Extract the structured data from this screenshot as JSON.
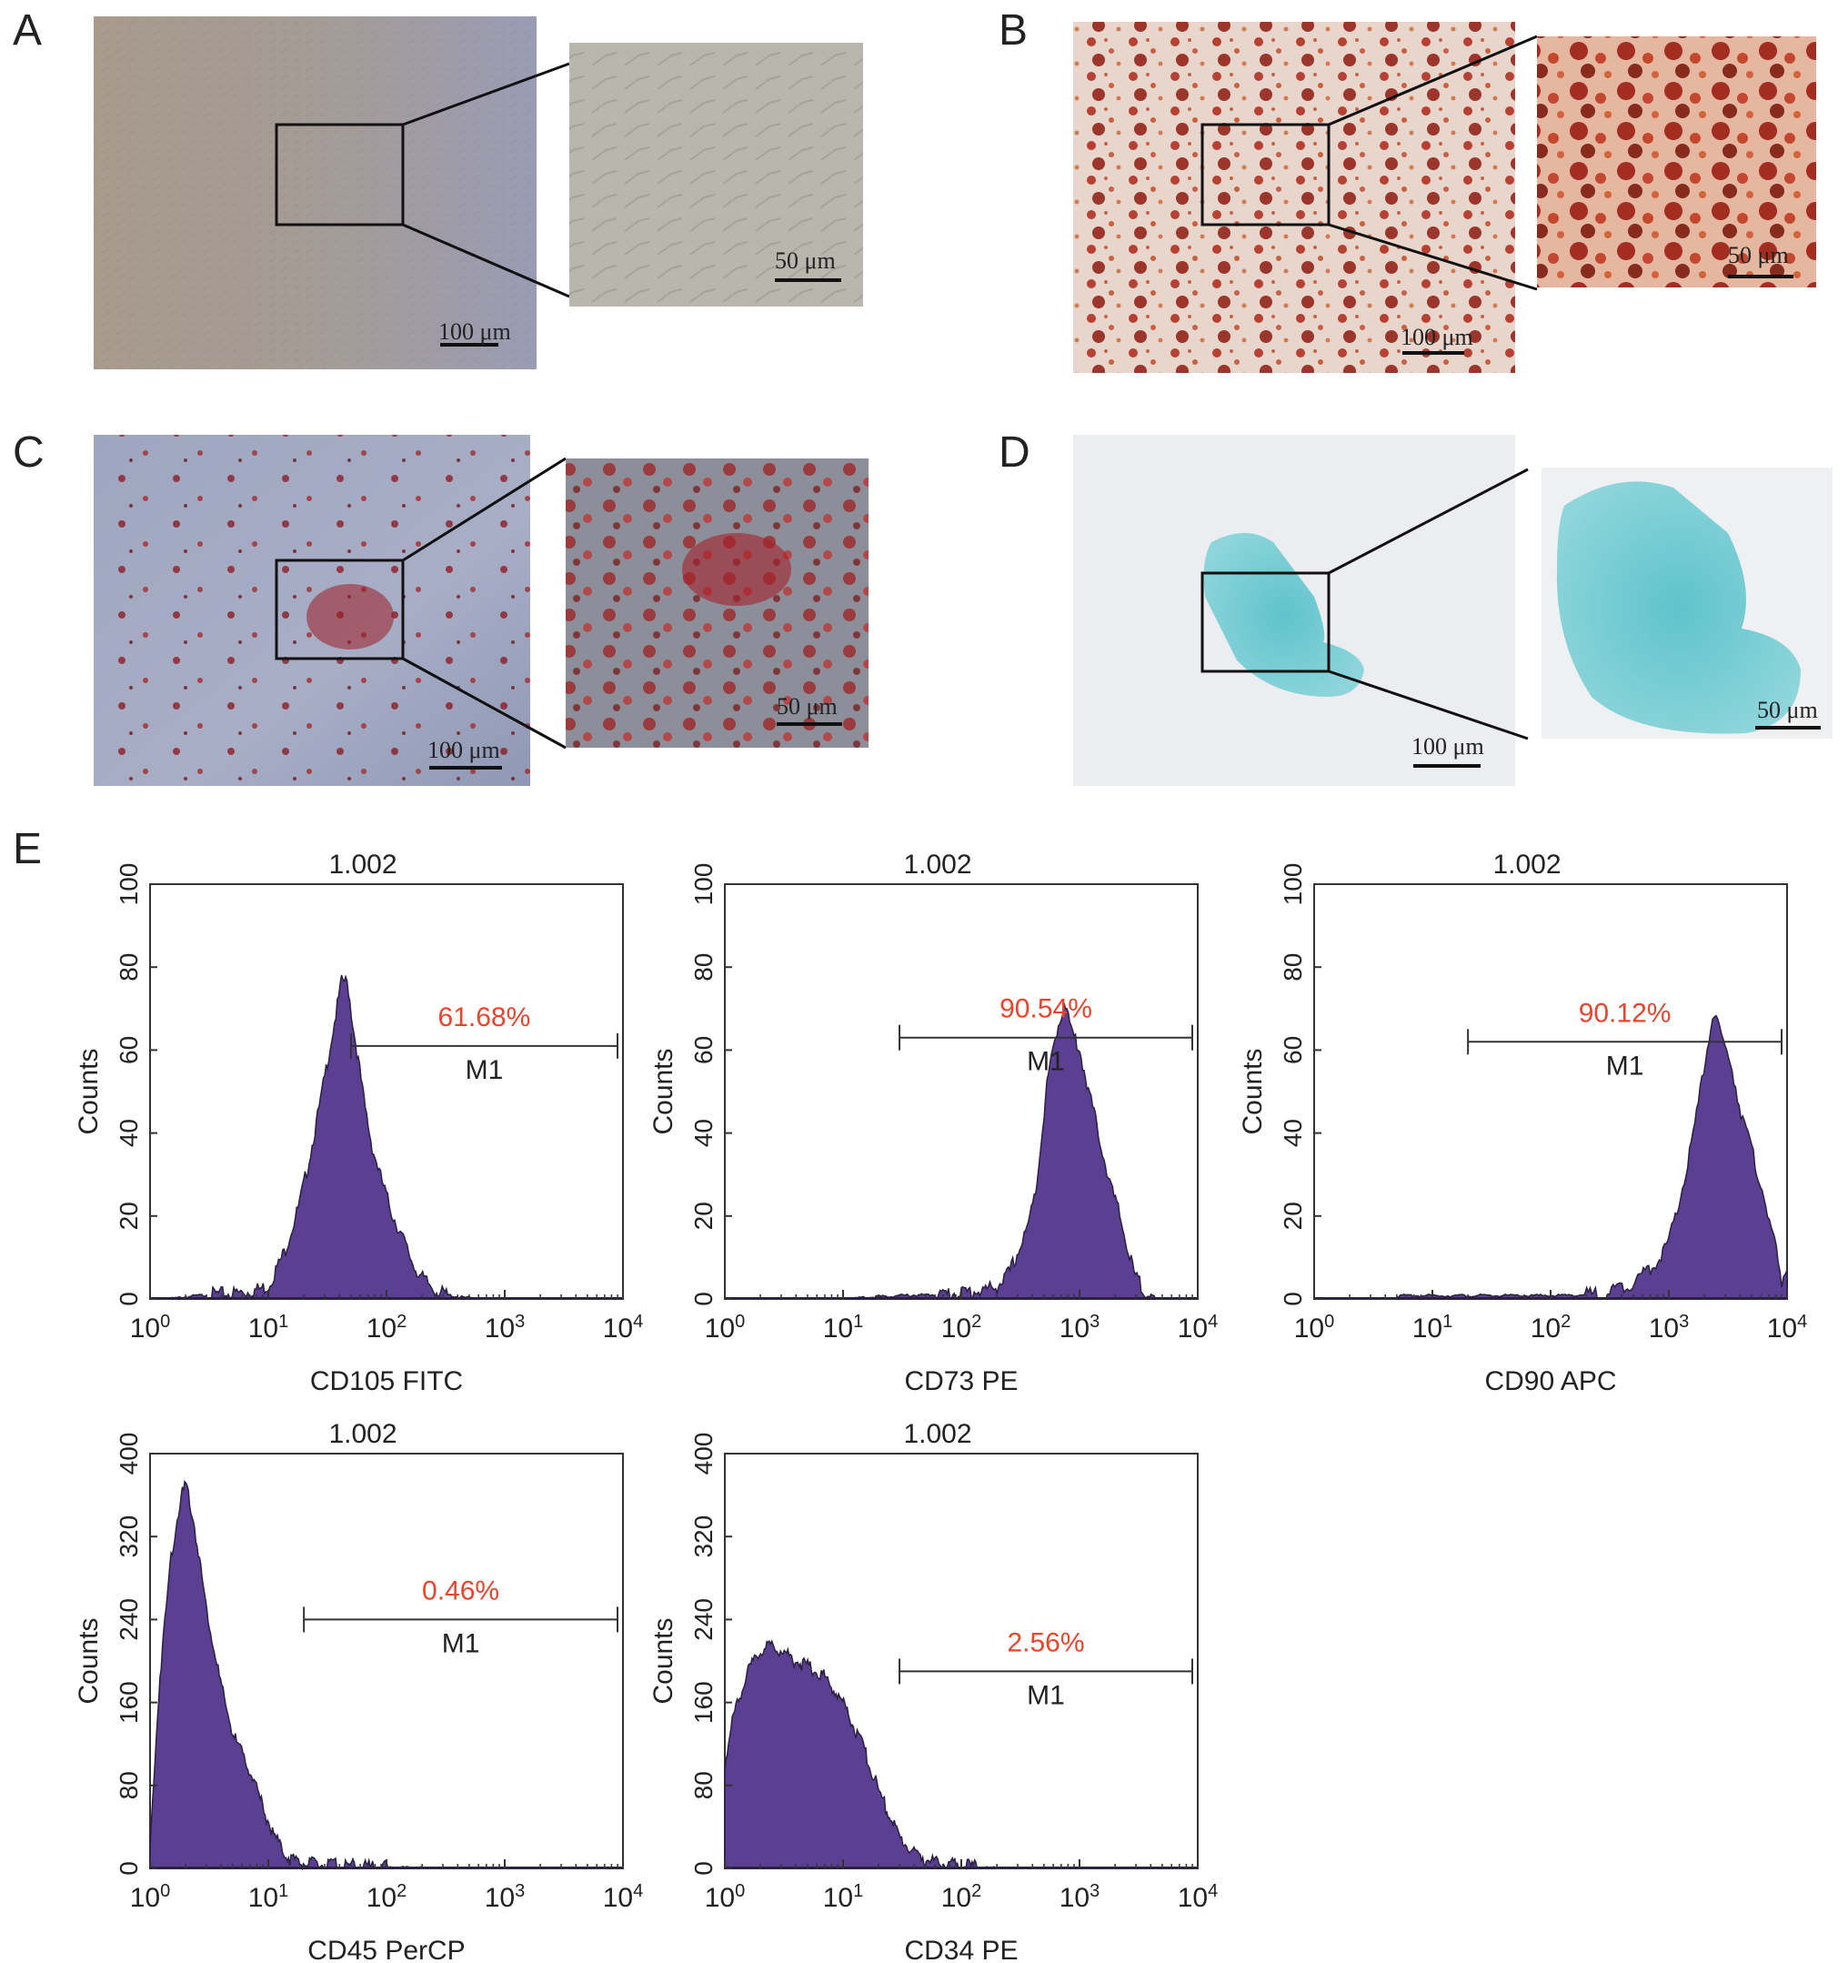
{
  "panel_letters": [
    "A",
    "B",
    "C",
    "D",
    "E"
  ],
  "micrographs": {
    "A": {
      "scale_main": "100 μm",
      "scale_zoom": "50 μm",
      "stain": "unstained",
      "color": "#a79b8f"
    },
    "B": {
      "scale_main": "100 μm",
      "scale_zoom": "50 μm",
      "stain": "alizarin-red",
      "color": "#b8281a"
    },
    "C": {
      "scale_main": "100 μm",
      "scale_zoom": "50 μm",
      "stain": "oil-red-o",
      "color": "#9e1f25"
    },
    "D": {
      "scale_main": "100 μm",
      "scale_zoom": "50 μm",
      "stain": "alcian-blue",
      "color": "#5ec8cf"
    }
  },
  "colors": {
    "fill": "#5b3f92",
    "percent": "#e8452c"
  },
  "chart_data": [
    {
      "type": "area",
      "title": "1.002",
      "xlabel": "CD105 FITC",
      "ylabel": "Counts",
      "xscale": "log",
      "xlim": [
        1,
        10000
      ],
      "ylim": [
        0,
        100
      ],
      "xticks": [
        1,
        10,
        100,
        1000,
        10000
      ],
      "yticks": [
        0,
        20,
        40,
        60,
        80,
        100
      ],
      "percent": "61.68%",
      "marker": "M1",
      "gate": [
        50,
        10000
      ],
      "gate_y": 61,
      "x": [
        1.5,
        2,
        3,
        5,
        7,
        10,
        14,
        18,
        22,
        27,
        32,
        37,
        42,
        47,
        52,
        58,
        65,
        75,
        90,
        110,
        140,
        170,
        200,
        250,
        300,
        400,
        600
      ],
      "y": [
        0,
        0.5,
        1,
        1.3,
        1.8,
        3,
        12,
        22,
        33,
        46,
        58,
        68,
        77,
        76,
        66,
        57,
        47,
        37,
        29,
        21,
        14,
        8,
        5,
        2.5,
        1.2,
        0.5,
        0
      ]
    },
    {
      "type": "area",
      "title": "1.002",
      "xlabel": "CD73 PE",
      "ylabel": "Counts",
      "xscale": "log",
      "xlim": [
        1,
        10000
      ],
      "ylim": [
        0,
        100
      ],
      "xticks": [
        1,
        10,
        100,
        1000,
        10000
      ],
      "yticks": [
        0,
        20,
        40,
        60,
        80,
        100
      ],
      "percent": "90.54%",
      "marker": "M1",
      "gate": [
        30,
        10000
      ],
      "gate_y": 63,
      "x": [
        10,
        30,
        60,
        100,
        150,
        200,
        250,
        300,
        350,
        400,
        450,
        500,
        550,
        650,
        750,
        850,
        1000,
        1200,
        1500,
        1800,
        2200,
        2600,
        3000,
        3600,
        4500
      ],
      "y": [
        0,
        0.8,
        1,
        1.5,
        2,
        3,
        6,
        11,
        16,
        22,
        32,
        45,
        55,
        65,
        72,
        65,
        60,
        50,
        38,
        28,
        20,
        11,
        5,
        2,
        0
      ]
    },
    {
      "type": "area",
      "title": "1.002",
      "xlabel": "CD90 APC",
      "ylabel": "Counts",
      "xscale": "log",
      "xlim": [
        1,
        10000
      ],
      "ylim": [
        0,
        100
      ],
      "xticks": [
        1,
        10,
        100,
        1000,
        10000
      ],
      "yticks": [
        0,
        20,
        40,
        60,
        80,
        100
      ],
      "percent": "90.12%",
      "marker": "M1",
      "gate": [
        20,
        10000
      ],
      "gate_y": 62,
      "x": [
        5,
        10,
        20,
        50,
        100,
        200,
        300,
        400,
        500,
        600,
        800,
        1000,
        1200,
        1500,
        1800,
        2100,
        2400,
        2800,
        3300,
        4000,
        5000,
        6500,
        8000,
        9000,
        10000
      ],
      "y": [
        0.8,
        0.8,
        0.8,
        0.8,
        0.8,
        1,
        1.5,
        3,
        4,
        6,
        9,
        14,
        22,
        35,
        48,
        60,
        70,
        62,
        58,
        46,
        36,
        24,
        12,
        4,
        8
      ]
    },
    {
      "type": "area",
      "title": "1.002",
      "xlabel": "CD45 PerCP",
      "ylabel": "Counts",
      "xscale": "log",
      "xlim": [
        1,
        10000
      ],
      "ylim": [
        0,
        400
      ],
      "xticks": [
        1,
        10,
        100,
        1000,
        10000
      ],
      "yticks": [
        0,
        80,
        160,
        240,
        320,
        400
      ],
      "percent": "0.46%",
      "marker": "M1",
      "gate": [
        20,
        10000
      ],
      "gate_y": 240,
      "x": [
        1,
        1.2,
        1.5,
        1.8,
        2,
        2.3,
        2.6,
        3,
        3.5,
        4,
        5,
        6,
        7,
        8,
        10,
        12,
        15,
        20,
        30,
        50,
        100,
        200
      ],
      "y": [
        20,
        180,
        300,
        355,
        370,
        340,
        300,
        250,
        210,
        175,
        130,
        110,
        95,
        75,
        45,
        25,
        10,
        5,
        3,
        2,
        1,
        0
      ]
    },
    {
      "type": "area",
      "title": "1.002",
      "xlabel": "CD34 PE",
      "ylabel": "Counts",
      "xscale": "log",
      "xlim": [
        1,
        10000
      ],
      "ylim": [
        0,
        400
      ],
      "xticks": [
        1,
        10,
        100,
        1000,
        10000
      ],
      "yticks": [
        0,
        80,
        160,
        240,
        320,
        400
      ],
      "percent": "2.56%",
      "marker": "M1",
      "gate": [
        30,
        10000
      ],
      "gate_y": 190,
      "x": [
        1,
        1.2,
        1.5,
        2,
        2.5,
        3,
        3.5,
        4,
        5,
        6,
        7,
        8,
        10,
        12,
        15,
        20,
        25,
        30,
        40,
        60,
        100,
        200
      ],
      "y": [
        100,
        150,
        185,
        210,
        215,
        210,
        205,
        200,
        195,
        190,
        185,
        175,
        160,
        140,
        115,
        75,
        50,
        30,
        15,
        5,
        2,
        0
      ]
    }
  ]
}
